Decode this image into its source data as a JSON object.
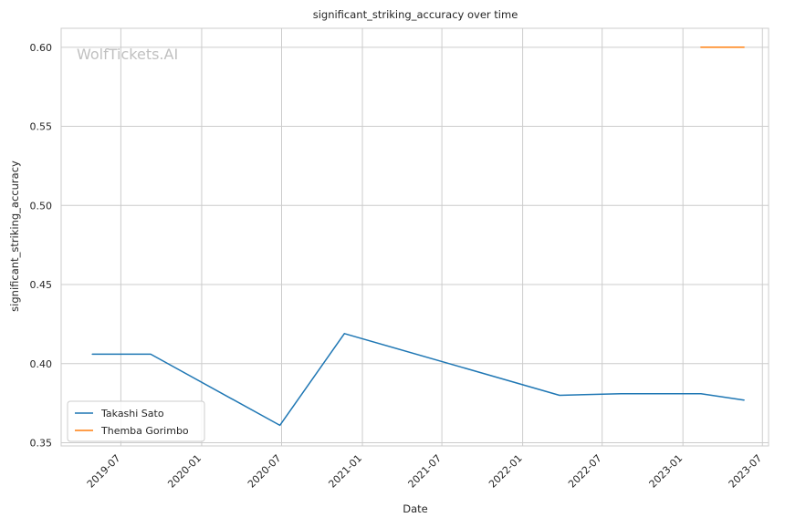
{
  "chart_data": {
    "type": "line",
    "title": "significant_striking_accuracy over time",
    "xlabel": "Date",
    "ylabel": "significant_striking_accuracy",
    "watermark": "WolfTickets.AI",
    "xlim": [
      "2019-02-15",
      "2023-07-15"
    ],
    "ylim": [
      0.348,
      0.612
    ],
    "x_ticks": [
      "2019-07",
      "2020-01",
      "2020-07",
      "2021-01",
      "2021-07",
      "2022-01",
      "2022-07",
      "2023-01",
      "2023-07"
    ],
    "y_ticks": [
      0.35,
      0.4,
      0.45,
      0.5,
      0.55,
      0.6
    ],
    "y_tick_labels": [
      "0.35",
      "0.40",
      "0.45",
      "0.50",
      "0.55",
      "0.60"
    ],
    "grid": true,
    "legend_position": "lower-left",
    "series": [
      {
        "name": "Takashi Sato",
        "color": "#1f77b4",
        "points": [
          {
            "x": "2019-04-27",
            "y": 0.406
          },
          {
            "x": "2019-09-07",
            "y": 0.406
          },
          {
            "x": "2020-06-27",
            "y": 0.361
          },
          {
            "x": "2020-11-21",
            "y": 0.419
          },
          {
            "x": "2022-03-26",
            "y": 0.38
          },
          {
            "x": "2022-08-13",
            "y": 0.381
          },
          {
            "x": "2023-02-11",
            "y": 0.381
          },
          {
            "x": "2023-05-20",
            "y": 0.377
          }
        ]
      },
      {
        "name": "Themba Gorimbo",
        "color": "#ff7f0e",
        "points": [
          {
            "x": "2023-02-11",
            "y": 0.6
          },
          {
            "x": "2023-05-20",
            "y": 0.6
          }
        ]
      }
    ]
  }
}
